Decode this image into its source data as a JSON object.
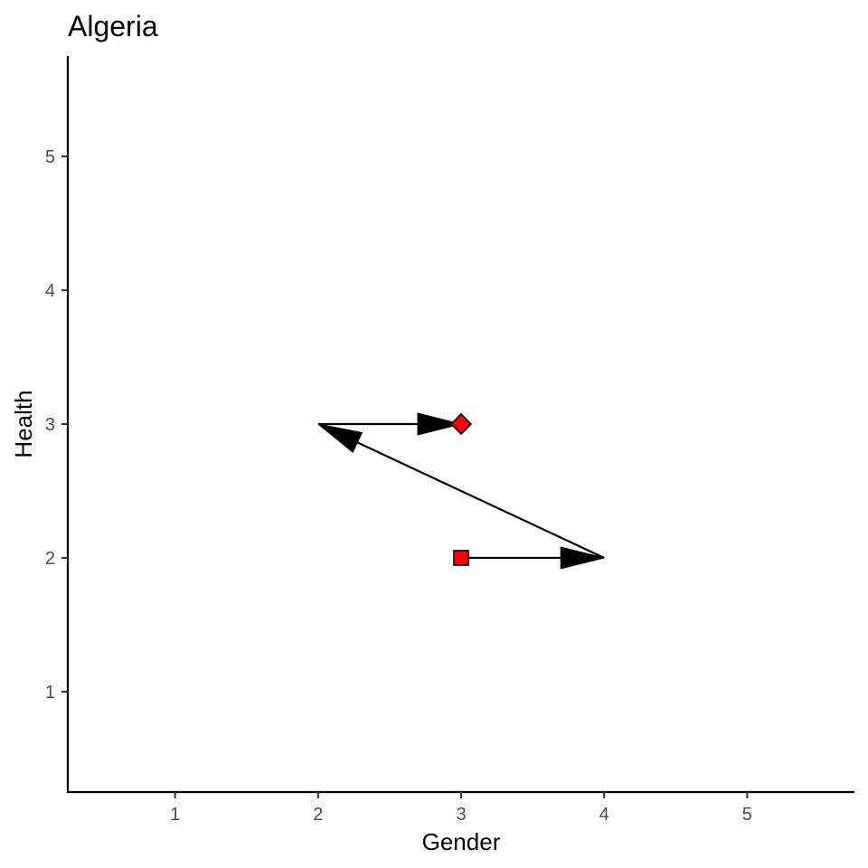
{
  "chart_data": {
    "type": "scatter",
    "title": "Algeria",
    "xlabel": "Gender",
    "ylabel": "Health",
    "xlim": [
      0.25,
      5.75
    ],
    "ylim": [
      0.25,
      5.75
    ],
    "xticks": [
      1,
      2,
      3,
      4,
      5
    ],
    "yticks": [
      1,
      2,
      3,
      4,
      5
    ],
    "grid": false,
    "points": [
      {
        "x": 3,
        "y": 2,
        "shape": "square",
        "color": "#ff0000"
      },
      {
        "x": 3,
        "y": 3,
        "shape": "diamond",
        "color": "#ff0000"
      }
    ],
    "path": [
      {
        "x": 3,
        "y": 2
      },
      {
        "x": 4,
        "y": 2
      },
      {
        "x": 2,
        "y": 3
      },
      {
        "x": 3,
        "y": 3
      }
    ],
    "arrow_color": "#000000"
  }
}
